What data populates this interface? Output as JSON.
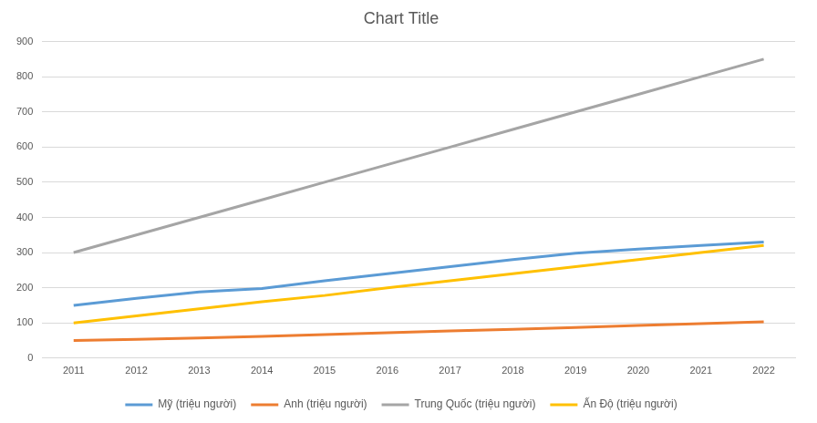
{
  "chart_data": {
    "type": "line",
    "title": "Chart Title",
    "categories": [
      "2011",
      "2012",
      "2013",
      "2014",
      "2015",
      "2016",
      "2017",
      "2018",
      "2019",
      "2020",
      "2021",
      "2022"
    ],
    "series": [
      {
        "name": "Mỹ (triệu người)",
        "color": "#5b9bd5",
        "values": [
          150,
          170,
          188,
          198,
          220,
          240,
          260,
          280,
          298,
          310,
          320,
          330
        ]
      },
      {
        "name": "Anh (triệu người)",
        "color": "#ed7d31",
        "values": [
          50,
          53,
          57,
          62,
          67,
          72,
          77,
          82,
          87,
          93,
          98,
          103
        ]
      },
      {
        "name": "Trung Quốc (triệu người)",
        "color": "#a5a5a5",
        "values": [
          300,
          350,
          400,
          450,
          500,
          550,
          600,
          650,
          700,
          750,
          800,
          850
        ]
      },
      {
        "name": "Ấn Độ (triệu người)",
        "color": "#ffc000",
        "values": [
          100,
          120,
          140,
          160,
          178,
          200,
          220,
          240,
          260,
          280,
          300,
          320
        ]
      }
    ],
    "ylim": [
      0,
      900
    ],
    "yticks": [
      0,
      100,
      200,
      300,
      400,
      500,
      600,
      700,
      800,
      900
    ],
    "grid": true,
    "legend": "bottom"
  }
}
